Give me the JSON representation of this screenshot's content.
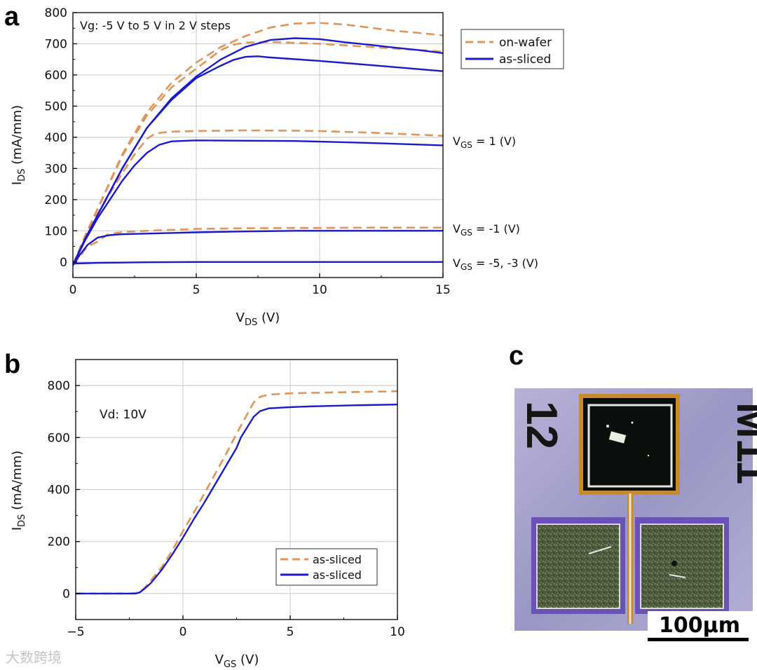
{
  "panels": {
    "a": "a",
    "b": "b",
    "c": "c"
  },
  "chart_data": [
    {
      "id": "a",
      "type": "line",
      "xlabel": "V",
      "xlabel_sub": "DS",
      "xlabel_unit": " (V)",
      "ylabel": "I",
      "ylabel_sub": "DS",
      "ylabel_unit": " (mA/mm)",
      "xlim": [
        0,
        15
      ],
      "ylim": [
        -50,
        800
      ],
      "xticks": [
        0,
        5,
        10,
        15
      ],
      "yticks": [
        0,
        100,
        200,
        300,
        400,
        500,
        600,
        700,
        800
      ],
      "grid": true,
      "legend_position": "right",
      "annotation": "Vg: -5 V to 5 V in 2 V steps",
      "curve_labels": [
        {
          "pre": "V",
          "sub": "GS",
          "post": " = 1 (V)",
          "at": 400
        },
        {
          "pre": "V",
          "sub": "GS",
          "post": " = -1 (V)",
          "at": 110
        },
        {
          "pre": "V",
          "sub": "GS",
          "post": " = -5, -3 (V)",
          "at": 0
        }
      ],
      "series": [
        {
          "name": "on-wafer",
          "style": "dashed",
          "color": "#e0955a",
          "curves": [
            {
              "x": [
                0,
                0.3,
                0.6,
                1,
                1.4,
                2,
                3,
                5,
                7,
                9,
                10,
                12,
                15
              ],
              "y": [
                -10,
                20,
                50,
                65,
                88,
                96,
                100,
                106,
                108,
                109,
                109,
                110,
                110
              ]
            },
            {
              "x": [
                0,
                0.5,
                1,
                1.5,
                2,
                2.5,
                3,
                3.3,
                3.6,
                4,
                5,
                7,
                9,
                10,
                12,
                15
              ],
              "y": [
                -10,
                80,
                155,
                220,
                285,
                345,
                395,
                410,
                415,
                418,
                420,
                422,
                421,
                420,
                415,
                405
              ]
            },
            {
              "x": [
                0,
                0.5,
                1,
                2,
                3,
                4,
                5,
                5.5,
                6,
                6.5,
                7,
                8,
                9,
                10,
                12,
                15
              ],
              "y": [
                -10,
                85,
                170,
                340,
                470,
                560,
                620,
                650,
                680,
                697,
                704,
                706,
                703,
                700,
                690,
                675
              ]
            },
            {
              "x": [
                0,
                0.5,
                1,
                2,
                3,
                4,
                5,
                6,
                7,
                8,
                9,
                10,
                11,
                12,
                13,
                14,
                15
              ],
              "y": [
                -10,
                85,
                170,
                345,
                480,
                575,
                640,
                690,
                725,
                752,
                765,
                767,
                762,
                752,
                742,
                735,
                727
              ]
            }
          ]
        },
        {
          "name": "as-sliced",
          "style": "solid",
          "color": "#1a1ac8",
          "curves": [
            {
              "x": [
                0,
                1,
                2,
                3,
                5,
                7,
                9,
                10,
                12,
                15
              ],
              "y": [
                -5,
                -3,
                -2,
                -1,
                0,
                0,
                0,
                0,
                0,
                0
              ]
            },
            {
              "x": [
                0,
                0.3,
                0.6,
                1,
                1.5,
                2,
                3,
                5,
                7,
                9,
                10,
                12,
                15
              ],
              "y": [
                -10,
                25,
                55,
                78,
                86,
                89,
                91,
                95,
                98,
                100,
                100,
                100,
                100
              ]
            },
            {
              "x": [
                0,
                0.5,
                1,
                1.5,
                2,
                2.5,
                3,
                3.5,
                4,
                5,
                7,
                9,
                10,
                12,
                15
              ],
              "y": [
                -10,
                70,
                140,
                200,
                260,
                310,
                350,
                376,
                387,
                390,
                389,
                388,
                386,
                382,
                374
              ]
            },
            {
              "x": [
                0,
                0.5,
                1,
                2,
                3,
                4,
                5,
                6,
                6.5,
                7,
                7.5,
                8,
                10,
                12,
                15
              ],
              "y": [
                -10,
                75,
                150,
                300,
                430,
                520,
                590,
                630,
                648,
                658,
                660,
                656,
                645,
                632,
                612
              ]
            },
            {
              "x": [
                0,
                0.5,
                1,
                2,
                3,
                4,
                5,
                6,
                7,
                8,
                9,
                10,
                11,
                12,
                13,
                14,
                15
              ],
              "y": [
                -10,
                75,
                150,
                300,
                430,
                525,
                595,
                650,
                690,
                712,
                718,
                715,
                705,
                697,
                688,
                680,
                670
              ]
            }
          ]
        }
      ]
    },
    {
      "id": "b",
      "type": "line",
      "xlabel": "V",
      "xlabel_sub": "GS",
      "xlabel_unit": " (V)",
      "ylabel": "I",
      "ylabel_sub": "DS",
      "ylabel_unit": " (mA/mm)",
      "xlim": [
        -5,
        10
      ],
      "ylim": [
        -100,
        900
      ],
      "xticks": [
        -5,
        0,
        5,
        10
      ],
      "yticks": [
        0,
        200,
        400,
        600,
        800
      ],
      "grid": true,
      "legend_position": "bottom-right",
      "annotation": "Vd: 10V",
      "series": [
        {
          "name": "as-sliced",
          "style": "dashed",
          "color": "#e0955a",
          "x": [
            -5,
            -2.5,
            -2.1,
            -1.8,
            -1.5,
            -1,
            -0.5,
            0,
            0.5,
            1,
            1.5,
            2,
            2.5,
            3,
            3.3,
            3.6,
            4,
            5,
            6,
            8,
            10
          ],
          "y": [
            0,
            0,
            3,
            20,
            50,
            100,
            165,
            240,
            310,
            385,
            460,
            535,
            615,
            690,
            735,
            757,
            765,
            770,
            772,
            775,
            778
          ]
        },
        {
          "name": "as-sliced",
          "style": "solid",
          "color": "#1a1ac8",
          "x": [
            -5,
            -2.2,
            -2,
            -1.8,
            -1.5,
            -1,
            -0.5,
            0,
            0.5,
            1,
            1.5,
            2,
            2.5,
            2.7,
            3,
            3.3,
            3.6,
            4,
            5,
            6,
            8,
            10
          ],
          "y": [
            0,
            0,
            5,
            18,
            40,
            90,
            150,
            215,
            285,
            350,
            420,
            490,
            560,
            600,
            640,
            680,
            702,
            712,
            717,
            720,
            724,
            727
          ]
        }
      ]
    }
  ],
  "micrograph": {
    "labels": {
      "left": "12",
      "right": "M11"
    },
    "scale_bar": "100μm"
  },
  "watermark": "大数跨境"
}
